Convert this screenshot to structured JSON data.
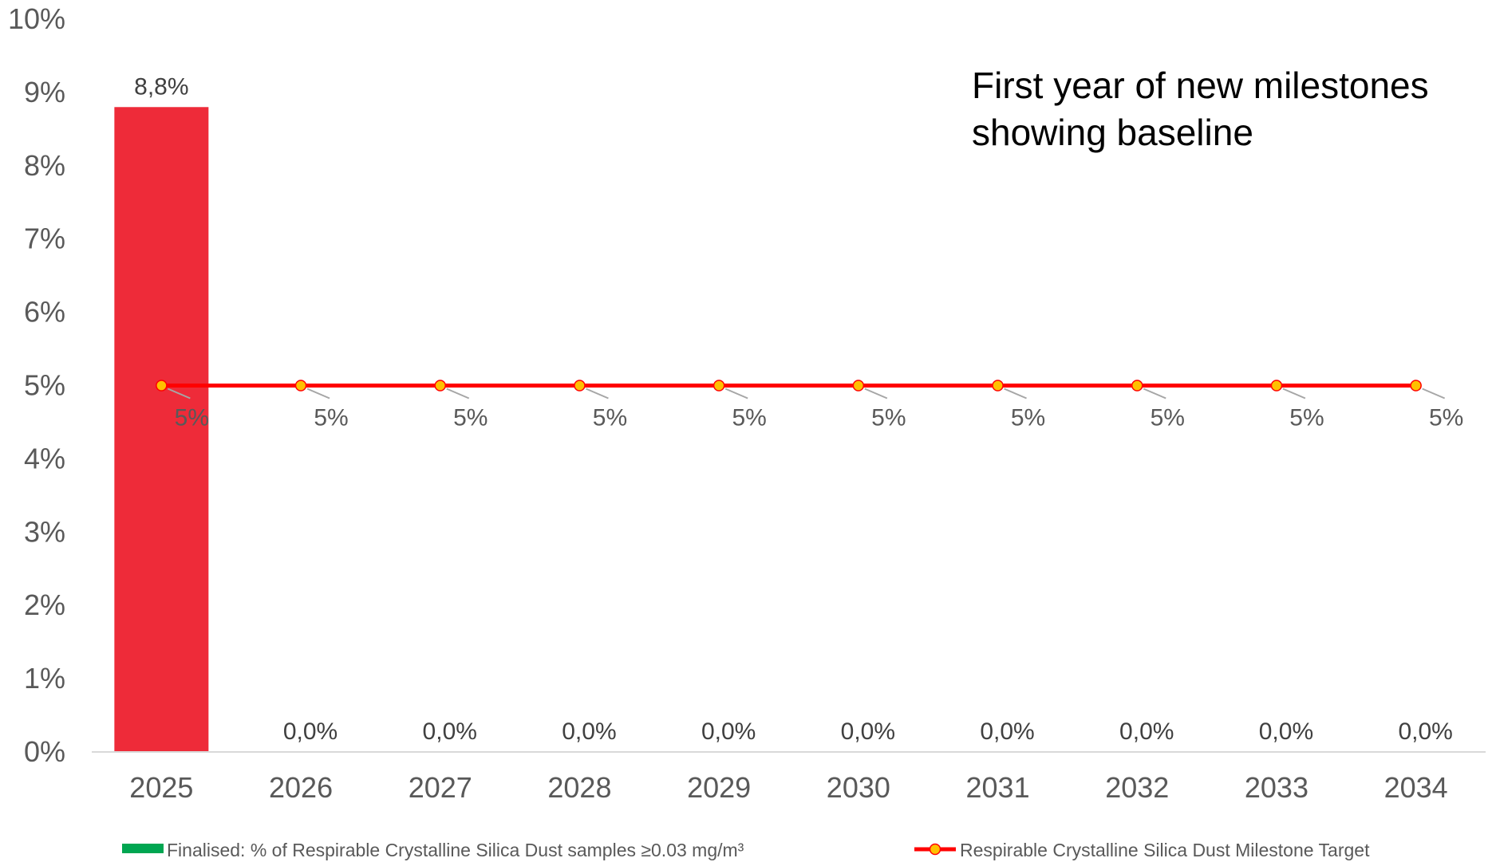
{
  "chart_data": {
    "type": "bar",
    "categories": [
      "2025",
      "2026",
      "2027",
      "2028",
      "2029",
      "2030",
      "2031",
      "2032",
      "2033",
      "2034"
    ],
    "series": [
      {
        "name": "Finalised: % of Respirable Crystalline Silica Dust samples ≥0.03 mg/m³",
        "type": "bar",
        "values": [
          8.8,
          0.0,
          0.0,
          0.0,
          0.0,
          0.0,
          0.0,
          0.0,
          0.0,
          0.0
        ],
        "labels": [
          "8,8%",
          "0,0%",
          "0,0%",
          "0,0%",
          "0,0%",
          "0,0%",
          "0,0%",
          "0,0%",
          "0,0%",
          "0,0%"
        ],
        "legend_color": "#00a651",
        "bar_color": "#ee2b39"
      },
      {
        "name": "Respirable Crystalline Silica Dust Milestone Target",
        "type": "line",
        "values": [
          5,
          5,
          5,
          5,
          5,
          5,
          5,
          5,
          5,
          5
        ],
        "labels": [
          "5%",
          "5%",
          "5%",
          "5%",
          "5%",
          "5%",
          "5%",
          "5%",
          "5%",
          "5%"
        ],
        "line_color": "#ff0000",
        "marker_color": "#ffc000"
      }
    ],
    "ylim": [
      0,
      10
    ],
    "yticks": [
      "0%",
      "1%",
      "2%",
      "3%",
      "4%",
      "5%",
      "6%",
      "7%",
      "8%",
      "9%",
      "10%"
    ],
    "annotation": [
      "First year of new milestones",
      "showing baseline"
    ],
    "legend_position": "bottom",
    "grid": false
  }
}
